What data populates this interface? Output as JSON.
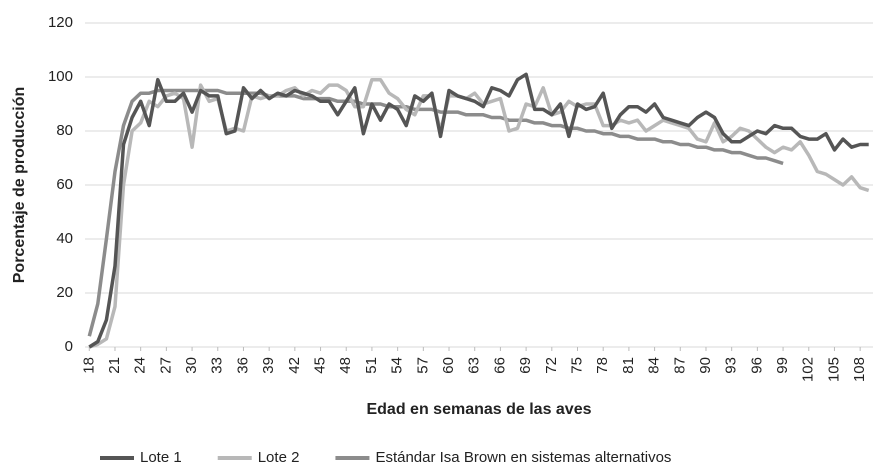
{
  "chart_data": {
    "type": "line",
    "x_label": "Edad en semanas de las aves",
    "y_label": "Porcentaje de producción",
    "x": [
      18,
      19,
      20,
      21,
      22,
      23,
      24,
      25,
      26,
      27,
      28,
      29,
      30,
      31,
      32,
      33,
      34,
      35,
      36,
      37,
      38,
      39,
      40,
      41,
      42,
      43,
      44,
      45,
      46,
      47,
      48,
      49,
      50,
      51,
      52,
      53,
      54,
      55,
      56,
      57,
      58,
      59,
      60,
      61,
      62,
      63,
      64,
      65,
      66,
      67,
      68,
      69,
      70,
      71,
      72,
      73,
      74,
      75,
      76,
      77,
      78,
      79,
      80,
      81,
      82,
      83,
      84,
      85,
      86,
      87,
      88,
      89,
      90,
      91,
      92,
      93,
      94,
      95,
      96,
      97,
      98,
      99,
      100,
      101,
      102,
      103,
      104,
      105,
      106,
      107,
      108,
      109
    ],
    "series": [
      {
        "name": "Lote 1",
        "color": "#555555",
        "values": [
          0,
          2,
          10,
          30,
          75,
          85,
          91,
          82,
          99,
          91,
          91,
          94,
          87,
          95,
          93,
          93,
          79,
          80,
          96,
          92,
          95,
          92,
          94,
          93,
          95,
          94,
          93,
          91,
          91,
          86,
          91,
          96,
          79,
          90,
          84,
          90,
          88,
          82,
          93,
          91,
          94,
          78,
          95,
          93,
          92,
          91,
          89,
          96,
          95,
          93,
          99,
          101,
          88,
          88,
          86,
          90,
          78,
          90,
          88,
          89,
          94,
          81,
          86,
          89,
          89,
          87,
          90,
          85,
          84,
          83,
          82,
          85,
          87,
          85,
          79,
          76,
          76,
          78,
          80,
          79,
          82,
          81,
          81,
          78,
          77,
          77,
          79,
          73,
          77,
          74,
          75,
          75
        ]
      },
      {
        "name": "Lote 2",
        "color": "#b8b8b8",
        "values": [
          0,
          1,
          3,
          15,
          60,
          80,
          83,
          91,
          89,
          93,
          94,
          92,
          74,
          97,
          91,
          92,
          80,
          81,
          80,
          93,
          92,
          93,
          93,
          95,
          96,
          93,
          95,
          94,
          97,
          97,
          95,
          89,
          89,
          99,
          99,
          94,
          92,
          88,
          86,
          93,
          93,
          80,
          93,
          93,
          92,
          94,
          90,
          91,
          92,
          80,
          81,
          90,
          89,
          96,
          86,
          87,
          91,
          89,
          90,
          90,
          82,
          82,
          84,
          83,
          84,
          80,
          82,
          84,
          83,
          82,
          81,
          77,
          76,
          83,
          76,
          78,
          81,
          80,
          77,
          74,
          72,
          74,
          73,
          76,
          71,
          65,
          64,
          62,
          60,
          63,
          59,
          58
        ]
      },
      {
        "name": "Estándar Isa Brown en sistemas alternativos",
        "color": "#8c8c8c",
        "values": [
          4,
          16,
          40,
          65,
          82,
          91,
          94,
          94,
          95,
          95,
          95,
          95,
          95,
          95,
          95,
          95,
          94,
          94,
          94,
          94,
          94,
          93,
          93,
          93,
          93,
          92,
          92,
          92,
          92,
          91,
          91,
          91,
          90,
          90,
          90,
          89,
          89,
          89,
          88,
          88,
          88,
          87,
          87,
          87,
          86,
          86,
          86,
          85,
          85,
          84,
          84,
          84,
          83,
          83,
          82,
          82,
          81,
          81,
          80,
          80,
          79,
          79,
          78,
          78,
          77,
          77,
          77,
          76,
          76,
          75,
          75,
          74,
          74,
          73,
          73,
          72,
          72,
          71,
          70,
          70,
          69,
          68,
          null,
          null,
          null,
          null,
          null,
          null,
          null,
          null,
          null,
          null
        ]
      }
    ],
    "xlim": [
      17.5,
      109.5
    ],
    "xticks": [
      18,
      21,
      24,
      27,
      30,
      33,
      36,
      39,
      42,
      45,
      48,
      51,
      54,
      57,
      60,
      63,
      66,
      69,
      72,
      75,
      78,
      81,
      84,
      87,
      90,
      93,
      96,
      99,
      102,
      105,
      108
    ],
    "ylim": [
      0,
      120
    ],
    "yticks": [
      0,
      20,
      40,
      60,
      80,
      100,
      120
    ],
    "grid": true,
    "legend": "bottom"
  }
}
